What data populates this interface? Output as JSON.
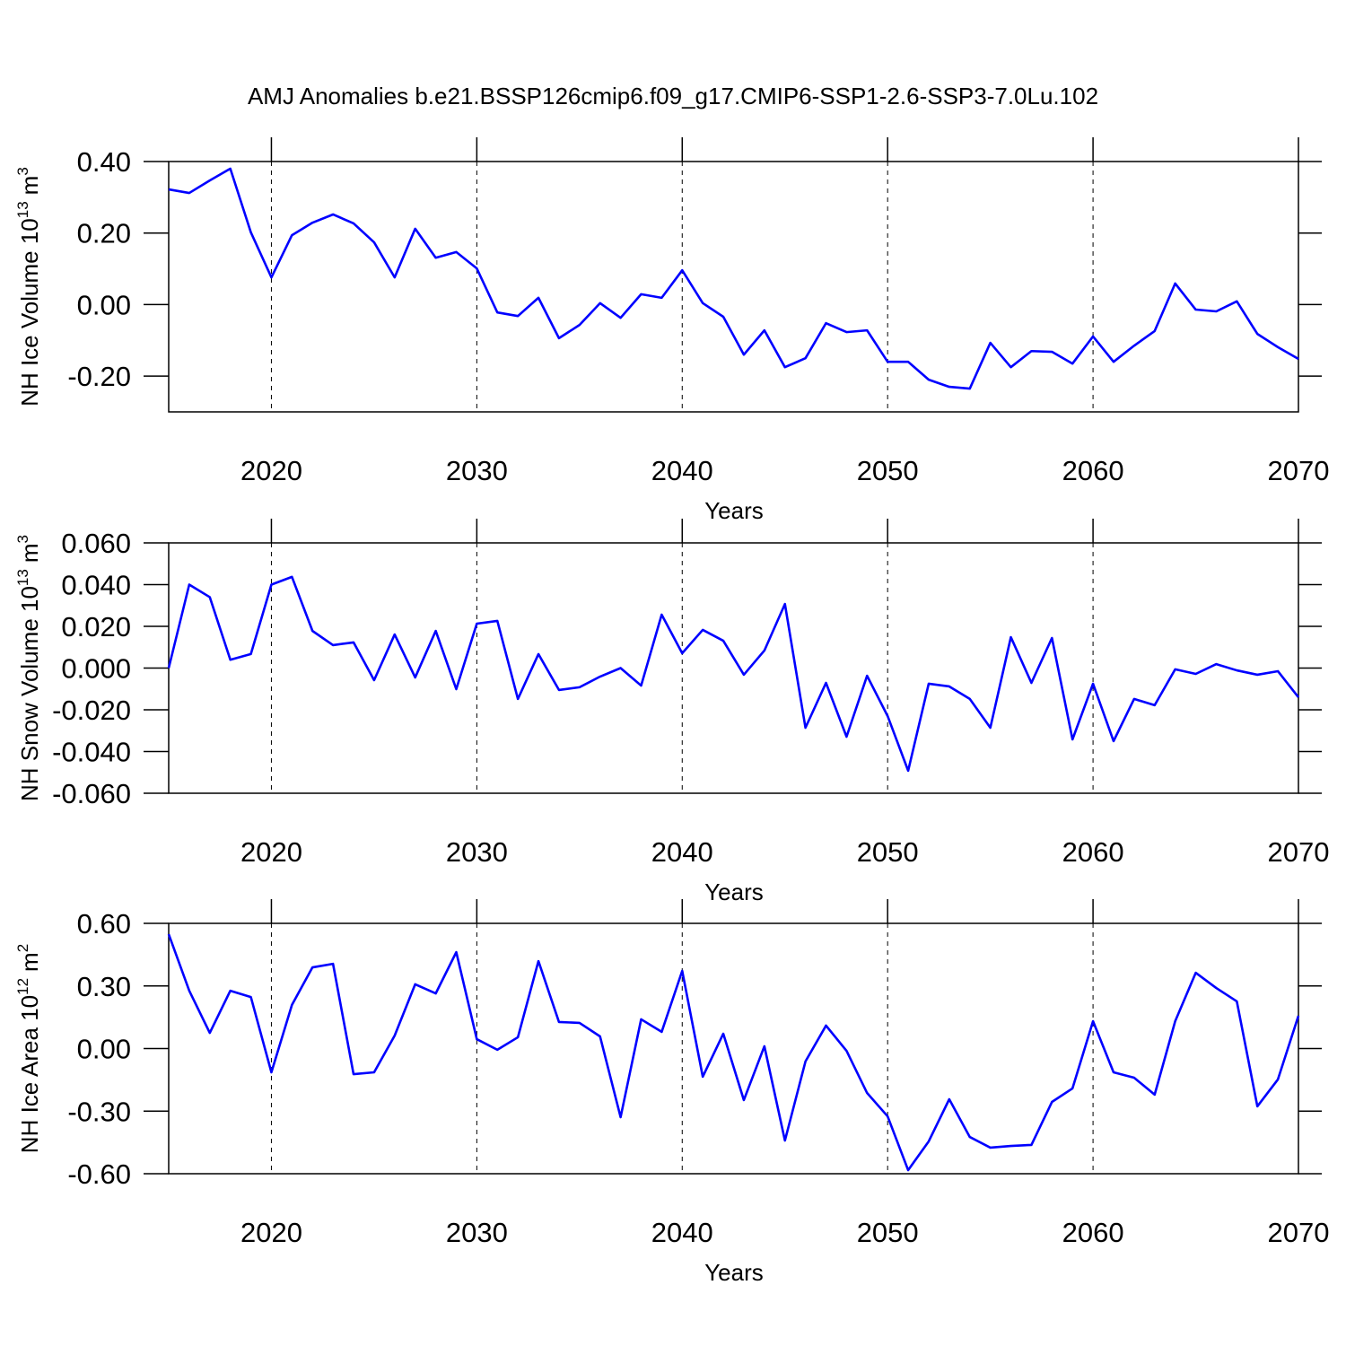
{
  "chart_data": [
    {
      "type": "line",
      "title": "AMJ Anomalies b.e21.BSSP126cmip6.f09_g17.CMIP6-SSP1-2.6-SSP3-7.0Lu.102",
      "xlabel": "Years",
      "ylabel": {
        "text": "NH Ice Volume 10",
        "exponent": "13",
        "unit": "m",
        "unit_exponent": "3"
      },
      "color": "#0000ff",
      "grid": "x",
      "xlim": [
        2015,
        2070
      ],
      "xticks": [
        2020,
        2030,
        2040,
        2050,
        2060,
        2070
      ],
      "ylim": [
        -0.3,
        0.4
      ],
      "yticks": [
        {
          "value": -0.2,
          "label": "-0.20"
        },
        {
          "value": 0,
          "label": "0.00"
        },
        {
          "value": 0.2,
          "label": "0.20"
        },
        {
          "value": 0.4,
          "label": "0.40"
        }
      ],
      "x": [
        2015,
        2016,
        2017,
        2018,
        2019,
        2020,
        2021,
        2022,
        2023,
        2024,
        2025,
        2026,
        2027,
        2028,
        2029,
        2030,
        2031,
        2032,
        2033,
        2034,
        2035,
        2036,
        2037,
        2038,
        2039,
        2040,
        2041,
        2042,
        2043,
        2044,
        2045,
        2046,
        2047,
        2048,
        2049,
        2050,
        2051,
        2052,
        2053,
        2054,
        2055,
        2056,
        2057,
        2058,
        2059,
        2060,
        2061,
        2062,
        2063,
        2064,
        2065,
        2066,
        2067,
        2068,
        2069,
        2070
      ],
      "values": [
        0.322,
        0.312,
        0.347,
        0.38,
        0.202,
        0.076,
        0.194,
        0.229,
        0.252,
        0.227,
        0.174,
        0.076,
        0.212,
        0.131,
        0.147,
        0.101,
        -0.022,
        -0.032,
        0.019,
        -0.094,
        -0.057,
        0.004,
        -0.037,
        0.029,
        0.019,
        0.096,
        0.004,
        -0.034,
        -0.14,
        -0.072,
        -0.175,
        -0.15,
        -0.052,
        -0.077,
        -0.072,
        -0.16,
        -0.16,
        -0.21,
        -0.23,
        -0.235,
        -0.107,
        -0.175,
        -0.13,
        -0.132,
        -0.165,
        -0.089,
        -0.16,
        -0.115,
        -0.074,
        0.059,
        -0.014,
        -0.019,
        0.009,
        -0.082,
        -0.119,
        -0.152
      ]
    },
    {
      "type": "line",
      "xlabel": "Years",
      "ylabel": {
        "text": "NH Snow Volume 10",
        "exponent": "13",
        "unit": "m",
        "unit_exponent": "3"
      },
      "color": "#0000ff",
      "grid": "x",
      "xlim": [
        2015,
        2070
      ],
      "xticks": [
        2020,
        2030,
        2040,
        2050,
        2060,
        2070
      ],
      "ylim": [
        -0.06,
        0.06
      ],
      "yticks": [
        {
          "value": -0.06,
          "label": "-0.060"
        },
        {
          "value": -0.04,
          "label": "-0.040"
        },
        {
          "value": -0.02,
          "label": "-0.020"
        },
        {
          "value": 0,
          "label": "0.000"
        },
        {
          "value": 0.02,
          "label": "0.020"
        },
        {
          "value": 0.04,
          "label": "0.040"
        },
        {
          "value": 0.06,
          "label": "0.060"
        }
      ],
      "x": [
        2015,
        2016,
        2017,
        2018,
        2019,
        2020,
        2021,
        2022,
        2023,
        2024,
        2025,
        2026,
        2027,
        2028,
        2029,
        2030,
        2031,
        2032,
        2033,
        2034,
        2035,
        2036,
        2037,
        2038,
        2039,
        2040,
        2041,
        2042,
        2043,
        2044,
        2045,
        2046,
        2047,
        2048,
        2049,
        2050,
        2051,
        2052,
        2053,
        2054,
        2055,
        2056,
        2057,
        2058,
        2059,
        2060,
        2061,
        2062,
        2063,
        2064,
        2065,
        2066,
        2067,
        2068,
        2069,
        2070
      ],
      "values": [
        0.0,
        0.04,
        0.034,
        0.004,
        0.0067,
        0.04,
        0.0437,
        0.0178,
        0.011,
        0.0123,
        -0.0058,
        0.0161,
        -0.0045,
        0.0178,
        -0.0101,
        0.0213,
        0.0226,
        -0.0148,
        0.0067,
        -0.0105,
        -0.0092,
        -0.0041,
        0.0,
        -0.0084,
        0.0256,
        0.0071,
        0.0183,
        0.0131,
        -0.0032,
        0.0084,
        0.0307,
        -0.0286,
        -0.0071,
        -0.0329,
        -0.0037,
        -0.023,
        -0.0492,
        -0.0075,
        -0.0088,
        -0.0148,
        -0.0286,
        0.0148,
        -0.0071,
        0.0144,
        -0.0342,
        -0.0075,
        -0.035,
        -0.0148,
        -0.0178,
        -0.0006,
        -0.0028,
        0.0019,
        -0.0011,
        -0.0032,
        -0.0015,
        -0.014
      ]
    },
    {
      "type": "line",
      "xlabel": "Years",
      "ylabel": {
        "text": "NH Ice Area 10",
        "exponent": "12",
        "unit": "m",
        "unit_exponent": "2"
      },
      "color": "#0000ff",
      "grid": "x",
      "xlim": [
        2015,
        2070
      ],
      "xticks": [
        2020,
        2030,
        2040,
        2050,
        2060,
        2070
      ],
      "ylim": [
        -0.6,
        0.6
      ],
      "yticks": [
        {
          "value": -0.6,
          "label": "-0.60"
        },
        {
          "value": -0.3,
          "label": "-0.30"
        },
        {
          "value": 0,
          "label": "0.00"
        },
        {
          "value": 0.3,
          "label": "0.30"
        },
        {
          "value": 0.6,
          "label": "0.60"
        }
      ],
      "x": [
        2015,
        2016,
        2017,
        2018,
        2019,
        2020,
        2021,
        2022,
        2023,
        2024,
        2025,
        2026,
        2027,
        2028,
        2029,
        2030,
        2031,
        2032,
        2033,
        2034,
        2035,
        2036,
        2037,
        2038,
        2039,
        2040,
        2041,
        2042,
        2043,
        2044,
        2045,
        2046,
        2047,
        2048,
        2049,
        2050,
        2051,
        2052,
        2053,
        2054,
        2055,
        2056,
        2057,
        2058,
        2059,
        2060,
        2061,
        2062,
        2063,
        2064,
        2065,
        2066,
        2067,
        2068,
        2069,
        2070
      ],
      "values": [
        0.548,
        0.277,
        0.075,
        0.277,
        0.247,
        -0.114,
        0.209,
        0.389,
        0.406,
        -0.123,
        -0.114,
        0.062,
        0.308,
        0.264,
        0.462,
        0.045,
        -0.006,
        0.054,
        0.419,
        0.127,
        0.123,
        0.058,
        -0.329,
        0.14,
        0.08,
        0.372,
        -0.135,
        0.071,
        -0.247,
        0.011,
        -0.441,
        -0.062,
        0.11,
        -0.011,
        -0.213,
        -0.325,
        -0.583,
        -0.445,
        -0.243,
        -0.424,
        -0.475,
        -0.467,
        -0.462,
        -0.256,
        -0.191,
        0.131,
        -0.114,
        -0.14,
        -0.221,
        0.131,
        0.363,
        0.29,
        0.226,
        -0.277,
        -0.148,
        0.157
      ]
    }
  ]
}
